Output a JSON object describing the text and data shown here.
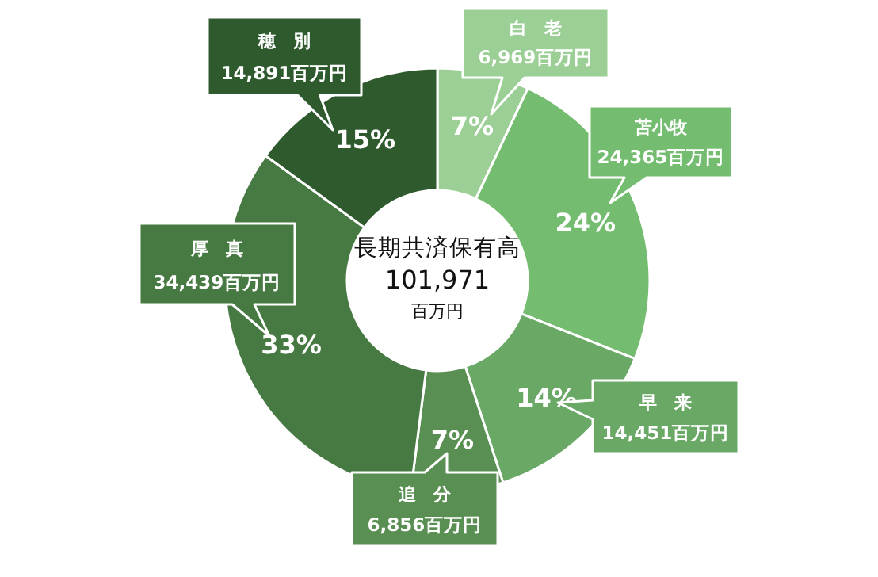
{
  "chart_data": {
    "type": "donut",
    "title": "長期共済保有高",
    "subtitle": "101,971",
    "categories": [
      "白　老",
      "苫小牧",
      "早　来",
      "追　分",
      "厚　真",
      "穂　別"
    ],
    "values": [
      7,
      24,
      14,
      7,
      33,
      15
    ],
    "colors": [
      "#9bcf95",
      "#74bc6f",
      "#6aa866",
      "#598f52",
      "#477a42",
      "#2e5a2e"
    ],
    "value_labels": [
      "7%",
      "24%",
      "14%",
      "7%",
      "33%",
      "15%"
    ],
    "annotations": [
      {
        "text": "6,969百万円",
        "x": "白　老"
      },
      {
        "text": "24,365百万円",
        "x": "苫小牧"
      },
      {
        "text": "14,451百万円",
        "x": "早　来"
      },
      {
        "text": "6,856百万円",
        "x": "追　分"
      },
      {
        "text": "34,439百万円",
        "x": "厚　真"
      },
      {
        "text": "14,891百万円",
        "x": "穂　別"
      },
      "百万円"
    ]
  }
}
